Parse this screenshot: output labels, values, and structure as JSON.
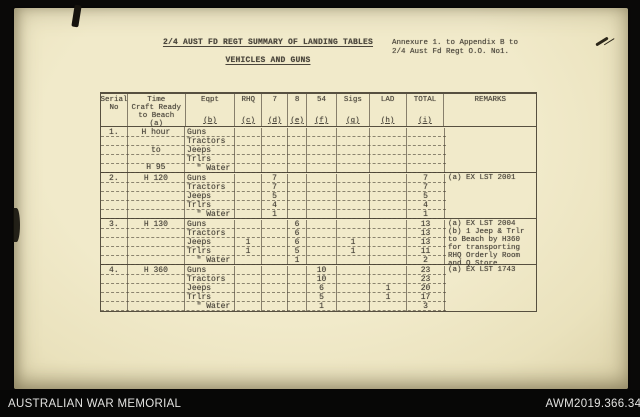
{
  "colors": {
    "paper": "#ece4c2",
    "ink": "#4a453b",
    "frame": "#0a0908",
    "caption_text": "#e2e2e0"
  },
  "footer": {
    "left": "AUSTRALIAN WAR MEMORIAL",
    "right": "AWM2019.366.341"
  },
  "document": {
    "title_line1": "2/4 AUST FD REGT SUMMARY OF LANDING TABLES",
    "title_line2": "VEHICLES AND GUNS",
    "annexure_line1": "Annexure 1. to Appendix B to",
    "annexure_line2": "2/4 Aust Fd Regt O.O. No1.",
    "table": {
      "columns": [
        {
          "label": "Serial\nNo",
          "letter": ""
        },
        {
          "label": "Time\nCraft Ready\nto Beach",
          "letter": "(a)"
        },
        {
          "label": "Eqpt",
          "letter": "(b)"
        },
        {
          "label": "RHQ",
          "letter": "(c)"
        },
        {
          "label": "7",
          "letter": "(d)"
        },
        {
          "label": "8",
          "letter": "(e)"
        },
        {
          "label": "54",
          "letter": "(f)"
        },
        {
          "label": "Sigs",
          "letter": "(g)"
        },
        {
          "label": "LAD",
          "letter": "(h)"
        },
        {
          "label": "TOTAL",
          "letter": "(i)"
        },
        {
          "label": "REMARKS",
          "letter": ""
        }
      ],
      "rows": [
        {
          "serial": "1.",
          "time": [
            "H hour",
            "to",
            "H 95"
          ],
          "lines": [
            {
              "eqpt": "Guns"
            },
            {
              "eqpt": "Tractors"
            },
            {
              "eqpt": "Jeeps"
            },
            {
              "eqpt": "Trlrs"
            },
            {
              "eqpt": "  \" Water"
            }
          ],
          "remarks": []
        },
        {
          "serial": "2.",
          "time": [
            "H 120"
          ],
          "lines": [
            {
              "eqpt": "Guns",
              "b7": "7",
              "total": "7"
            },
            {
              "eqpt": "Tractors",
              "b7": "7",
              "total": "7"
            },
            {
              "eqpt": "Jeeps",
              "b7": "5",
              "total": "5"
            },
            {
              "eqpt": "Trlrs",
              "b7": "4",
              "total": "4"
            },
            {
              "eqpt": "  \" Water",
              "b7": "1",
              "total": "1"
            }
          ],
          "remarks": [
            "(a) EX LST 2001"
          ]
        },
        {
          "serial": "3.",
          "time": [
            "H 130"
          ],
          "lines": [
            {
              "eqpt": "Guns",
              "b8": "6",
              "total": "13"
            },
            {
              "eqpt": "Tractors",
              "b8": "6",
              "total": "13"
            },
            {
              "eqpt": "Jeeps",
              "rhq": "1",
              "b8": "6",
              "sigs": "1",
              "total": "13"
            },
            {
              "eqpt": "Trlrs",
              "rhq": "1",
              "b8": "5",
              "sigs": "1",
              "total": "11"
            },
            {
              "eqpt": "  \" Water",
              "b8": "1",
              "total": "2"
            }
          ],
          "remarks": [
            "(a) EX LST 2004",
            "(b) 1 Jeep & Trlr",
            "to Beach by H360",
            "for transporting",
            "RHQ Orderly Room",
            "and Q Store"
          ]
        },
        {
          "serial": "4.",
          "time": [
            "H 360"
          ],
          "lines": [
            {
              "eqpt": "Guns",
              "b54": "10",
              "total": "23"
            },
            {
              "eqpt": "Tractors",
              "b54": "10",
              "total": "23"
            },
            {
              "eqpt": "Jeeps",
              "b54": "6",
              "lad": "1",
              "total": "20"
            },
            {
              "eqpt": "Trlrs",
              "b54": "5",
              "lad": "1",
              "total": "17"
            },
            {
              "eqpt": "  \" Water",
              "b54": "1",
              "total": "3"
            }
          ],
          "remarks": [
            "(a) EX LST 1743"
          ]
        }
      ]
    }
  }
}
